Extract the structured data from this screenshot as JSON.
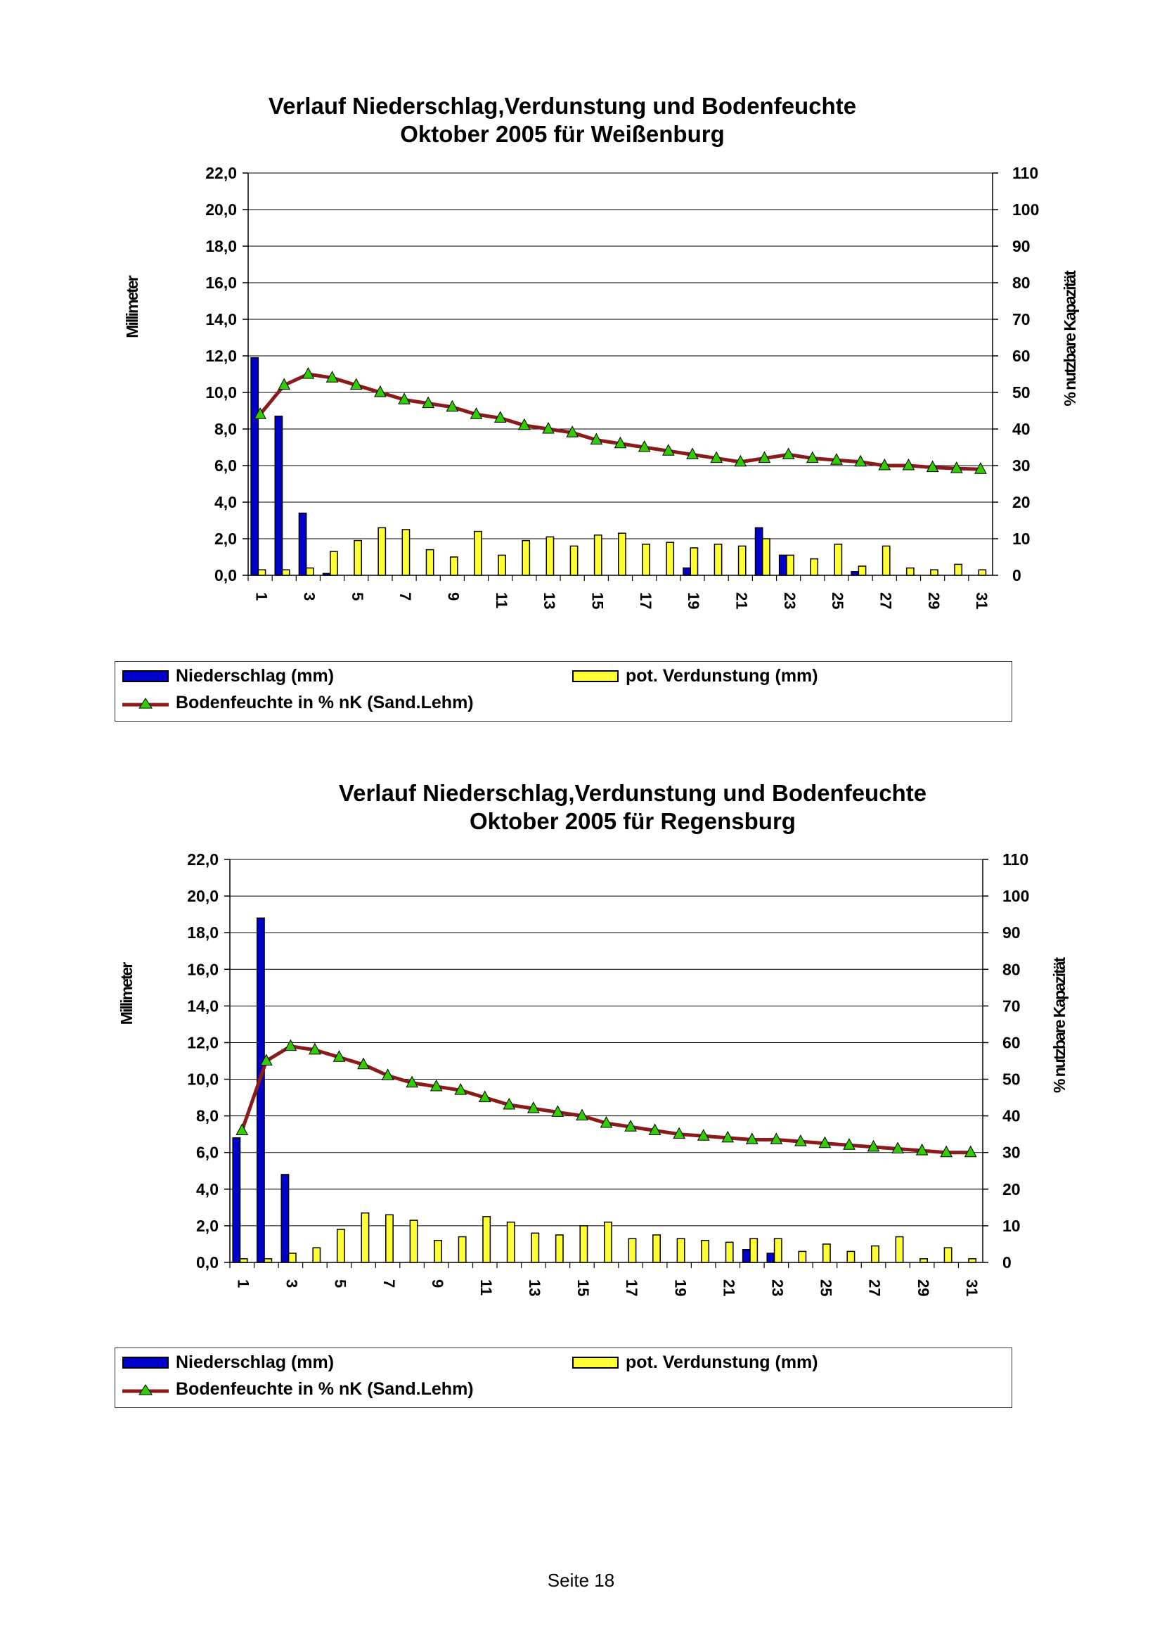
{
  "chart_data": [
    {
      "type": "bar",
      "title": [
        "Verlauf Niederschlag,Verdunstung und Bodenfeuchte",
        "Oktober 2005 für Weißenburg"
      ],
      "ylabel": "Millimeter",
      "y2label": "% nutzbare Kapazität",
      "ylim": [
        0,
        22
      ],
      "y2lim": [
        0,
        110
      ],
      "yticks": [
        "0,0",
        "2,0",
        "4,0",
        "6,0",
        "8,0",
        "10,0",
        "12,0",
        "14,0",
        "16,0",
        "18,0",
        "20,0",
        "22,0"
      ],
      "y2ticks": [
        "0",
        "10",
        "20",
        "30",
        "40",
        "50",
        "60",
        "70",
        "80",
        "90",
        "100",
        "110"
      ],
      "xticks": [
        "1",
        "3",
        "5",
        "7",
        "9",
        "11",
        "13",
        "15",
        "17",
        "19",
        "21",
        "23",
        "25",
        "27",
        "29",
        "31"
      ],
      "categories": [
        1,
        2,
        3,
        4,
        5,
        6,
        7,
        8,
        9,
        10,
        11,
        12,
        13,
        14,
        15,
        16,
        17,
        18,
        19,
        20,
        21,
        22,
        23,
        24,
        25,
        26,
        27,
        28,
        29,
        30,
        31
      ],
      "series": [
        {
          "name": "Niederschlag (mm)",
          "kind": "bar",
          "color": "#0000CC",
          "values": [
            11.9,
            8.7,
            3.4,
            0.1,
            0,
            0,
            0,
            0,
            0,
            0,
            0,
            0,
            0,
            0,
            0,
            0,
            0,
            0,
            0.4,
            0,
            0,
            2.6,
            1.1,
            0,
            0,
            0.2,
            0,
            0,
            0,
            0,
            0
          ]
        },
        {
          "name": "pot. Verdunstung (mm)",
          "kind": "bar",
          "color": "#FFFF33",
          "values": [
            0.3,
            0.3,
            0.4,
            1.3,
            1.9,
            2.6,
            2.5,
            1.4,
            1.0,
            2.4,
            1.1,
            1.9,
            2.1,
            1.6,
            2.2,
            2.3,
            1.7,
            1.8,
            1.5,
            1.7,
            1.6,
            2.0,
            1.1,
            0.9,
            1.7,
            0.5,
            1.6,
            0.4,
            0.3,
            0.6,
            0.3
          ]
        },
        {
          "name": "Bodenfeuchte in % nK (Sand.Lehm)",
          "kind": "line",
          "axis": "right",
          "color": "#8B1A1A",
          "marker_color": "#33CC00",
          "values": [
            44,
            52,
            55,
            54,
            52,
            50,
            48,
            47,
            46,
            44,
            43,
            41,
            40,
            39,
            37,
            36,
            35,
            34,
            33,
            32,
            31,
            32,
            33,
            32,
            31.5,
            31,
            30,
            30,
            29.5,
            29.2,
            29
          ]
        }
      ],
      "legend": "bottom"
    },
    {
      "type": "bar",
      "title": [
        "Verlauf Niederschlag,Verdunstung und Bodenfeuchte",
        "Oktober 2005 für Regensburg"
      ],
      "ylabel": "Millimeter",
      "y2label": "% nutzbare Kapazität",
      "ylim": [
        0,
        22
      ],
      "y2lim": [
        0,
        110
      ],
      "yticks": [
        "0,0",
        "2,0",
        "4,0",
        "6,0",
        "8,0",
        "10,0",
        "12,0",
        "14,0",
        "16,0",
        "18,0",
        "20,0",
        "22,0"
      ],
      "y2ticks": [
        "0",
        "10",
        "20",
        "30",
        "40",
        "50",
        "60",
        "70",
        "80",
        "90",
        "100",
        "110"
      ],
      "xticks": [
        "1",
        "3",
        "5",
        "7",
        "9",
        "11",
        "13",
        "15",
        "17",
        "19",
        "21",
        "23",
        "25",
        "27",
        "29",
        "31"
      ],
      "categories": [
        1,
        2,
        3,
        4,
        5,
        6,
        7,
        8,
        9,
        10,
        11,
        12,
        13,
        14,
        15,
        16,
        17,
        18,
        19,
        20,
        21,
        22,
        23,
        24,
        25,
        26,
        27,
        28,
        29,
        30,
        31
      ],
      "series": [
        {
          "name": "Niederschlag (mm)",
          "kind": "bar",
          "color": "#0000CC",
          "values": [
            6.8,
            18.8,
            4.8,
            0,
            0,
            0,
            0,
            0,
            0,
            0,
            0,
            0,
            0,
            0,
            0,
            0,
            0,
            0,
            0,
            0,
            0,
            0.7,
            0.5,
            0,
            0,
            0,
            0,
            0,
            0,
            0,
            0
          ]
        },
        {
          "name": "pot. Verdunstung (mm)",
          "kind": "bar",
          "color": "#FFFF33",
          "values": [
            0.2,
            0.2,
            0.5,
            0.8,
            1.8,
            2.7,
            2.6,
            2.3,
            1.2,
            1.4,
            2.5,
            2.2,
            1.6,
            1.5,
            2.0,
            2.2,
            1.3,
            1.5,
            1.3,
            1.2,
            1.1,
            1.3,
            1.3,
            0.6,
            1.0,
            0.6,
            0.9,
            1.4,
            0.2,
            0.8,
            0.2
          ]
        },
        {
          "name": "Bodenfeuchte in % nK (Sand.Lehm)",
          "kind": "line",
          "axis": "right",
          "color": "#8B1A1A",
          "marker_color": "#33CC00",
          "values": [
            36,
            55,
            59,
            58,
            56,
            54,
            51,
            49,
            48,
            47,
            45,
            43,
            42,
            41,
            40,
            38,
            37,
            36,
            35,
            34.5,
            34,
            33.5,
            33.5,
            33,
            32.5,
            32,
            31.5,
            31,
            30.5,
            30,
            30
          ]
        }
      ],
      "legend": "bottom"
    }
  ],
  "legend_labels": {
    "precipitation": "Niederschlag (mm)",
    "evaporation": "pot. Verdunstung (mm)",
    "soil_moisture": "Bodenfeuchte in % nK (Sand.Lehm)"
  },
  "footer": {
    "page": "Seite 18"
  }
}
